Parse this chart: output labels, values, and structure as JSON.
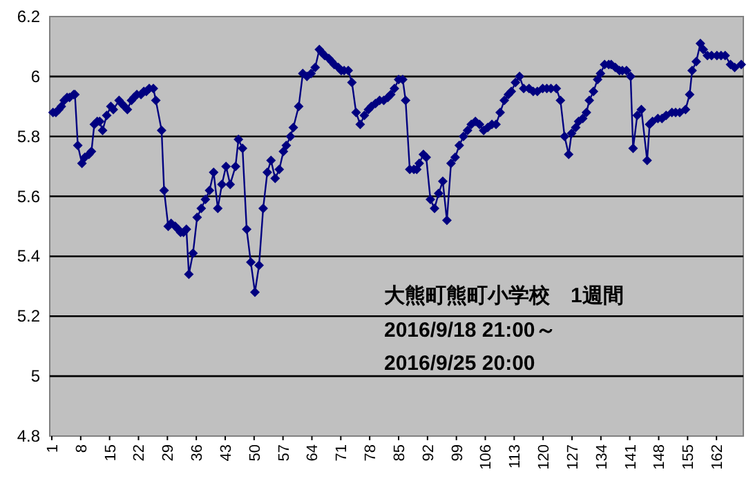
{
  "chart_data": {
    "type": "line",
    "color": "#000080",
    "marker": "diamond",
    "grid": "y",
    "xlim": [
      0.5,
      168.5
    ],
    "xticks": [
      1,
      8,
      15,
      22,
      29,
      36,
      43,
      50,
      57,
      64,
      71,
      78,
      85,
      92,
      99,
      106,
      113,
      120,
      127,
      134,
      141,
      148,
      155,
      162
    ],
    "ylim": [
      4.8,
      6.2
    ],
    "yticks": [
      4.8,
      5,
      5.2,
      5.4,
      5.6,
      5.8,
      6,
      6.2
    ],
    "annotations": [
      "大熊町熊町小学校　1週間",
      "2016/9/18 21:00～",
      "2016/9/25 20:00"
    ],
    "x": [
      1.3,
      2.0,
      2.7,
      3.3,
      4.0,
      4.7,
      5.3,
      6.3,
      6.6,
      7.3,
      8.3,
      9.0,
      10.0,
      10.6,
      11.3,
      12.0,
      12.6,
      13.3,
      14.3,
      15.3,
      15.9,
      17.3,
      17.9,
      18.6,
      19.3,
      20.3,
      20.9,
      21.6,
      22.6,
      23.3,
      23.9,
      24.6,
      25.6,
      26.2,
      27.6,
      28.2,
      29.2,
      29.9,
      30.9,
      31.6,
      32.2,
      32.9,
      33.6,
      34.2,
      35.2,
      36.2,
      37.2,
      38.2,
      39.2,
      40.2,
      41.2,
      42.2,
      43.2,
      44.2,
      45.5,
      46.2,
      47.2,
      48.2,
      49.2,
      50.2,
      51.2,
      52.2,
      53.2,
      54.1,
      55.1,
      56.1,
      57.1,
      57.8,
      58.8,
      59.5,
      60.8,
      61.8,
      62.8,
      63.8,
      64.8,
      65.8,
      66.4,
      67.1,
      68.1,
      68.8,
      69.4,
      70.4,
      71.1,
      71.8,
      72.8,
      73.7,
      74.7,
      75.7,
      76.7,
      77.7,
      78.4,
      79.4,
      80.4,
      81.4,
      82.4,
      83.1,
      84.0,
      85.0,
      86.0,
      86.7,
      87.7,
      88.7,
      89.4,
      90.0,
      91.0,
      91.7,
      92.7,
      93.7,
      94.7,
      95.7,
      96.7,
      97.7,
      98.7,
      99.7,
      100.7,
      101.7,
      102.6,
      103.6,
      104.6,
      105.6,
      106.6,
      107.6,
      108.6,
      109.6,
      110.6,
      111.6,
      112.3,
      113.3,
      114.3,
      115.3,
      116.6,
      117.6,
      118.6,
      119.9,
      120.9,
      121.9,
      123.2,
      124.2,
      125.2,
      126.2,
      126.9,
      127.9,
      128.6,
      129.6,
      130.5,
      131.2,
      132.2,
      133.2,
      133.9,
      134.9,
      135.9,
      136.5,
      137.5,
      138.5,
      139.2,
      140.2,
      141.2,
      141.8,
      142.8,
      143.8,
      145.2,
      145.8,
      146.5,
      147.8,
      148.8,
      149.8,
      151.2,
      152.1,
      153.1,
      154.5,
      155.5,
      156.1,
      157.1,
      158.1,
      158.8,
      159.8,
      160.8,
      162.1,
      163.1,
      164.1,
      165.4,
      166.4,
      168
    ],
    "values": [
      5.88,
      5.88,
      5.89,
      5.9,
      5.92,
      5.93,
      5.93,
      5.94,
      5.94,
      5.77,
      5.71,
      5.73,
      5.74,
      5.75,
      5.84,
      5.85,
      5.85,
      5.82,
      5.87,
      5.9,
      5.89,
      5.92,
      5.91,
      5.9,
      5.89,
      5.92,
      5.93,
      5.94,
      5.94,
      5.95,
      5.95,
      5.96,
      5.96,
      5.92,
      5.82,
      5.62,
      5.5,
      5.51,
      5.5,
      5.49,
      5.48,
      5.48,
      5.49,
      5.34,
      5.41,
      5.53,
      5.56,
      5.59,
      5.62,
      5.68,
      5.56,
      5.64,
      5.7,
      5.64,
      5.7,
      5.79,
      5.76,
      5.49,
      5.38,
      5.28,
      5.37,
      5.56,
      5.68,
      5.72,
      5.66,
      5.69,
      5.75,
      5.77,
      5.8,
      5.83,
      5.9,
      6.01,
      6.0,
      6.01,
      6.03,
      6.09,
      6.08,
      6.07,
      6.06,
      6.05,
      6.04,
      6.03,
      6.02,
      6.02,
      6.02,
      5.98,
      5.88,
      5.84,
      5.87,
      5.89,
      5.9,
      5.91,
      5.92,
      5.92,
      5.93,
      5.94,
      5.96,
      5.99,
      5.99,
      5.92,
      5.69,
      5.69,
      5.69,
      5.71,
      5.74,
      5.73,
      5.59,
      5.56,
      5.61,
      5.65,
      5.52,
      5.71,
      5.73,
      5.77,
      5.8,
      5.82,
      5.84,
      5.85,
      5.84,
      5.82,
      5.83,
      5.84,
      5.84,
      5.88,
      5.92,
      5.94,
      5.95,
      5.98,
      6.0,
      5.96,
      5.96,
      5.95,
      5.95,
      5.96,
      5.96,
      5.96,
      5.96,
      5.92,
      5.8,
      5.74,
      5.81,
      5.83,
      5.85,
      5.86,
      5.88,
      5.92,
      5.95,
      5.99,
      6.01,
      6.04,
      6.04,
      6.04,
      6.03,
      6.02,
      6.02,
      6.02,
      6.0,
      5.76,
      5.87,
      5.89,
      5.72,
      5.84,
      5.85,
      5.86,
      5.86,
      5.87,
      5.88,
      5.88,
      5.88,
      5.89,
      5.94,
      6.02,
      6.05,
      6.11,
      6.09,
      6.07,
      6.07,
      6.07,
      6.07,
      6.07,
      6.04,
      6.03,
      6.04
    ]
  }
}
